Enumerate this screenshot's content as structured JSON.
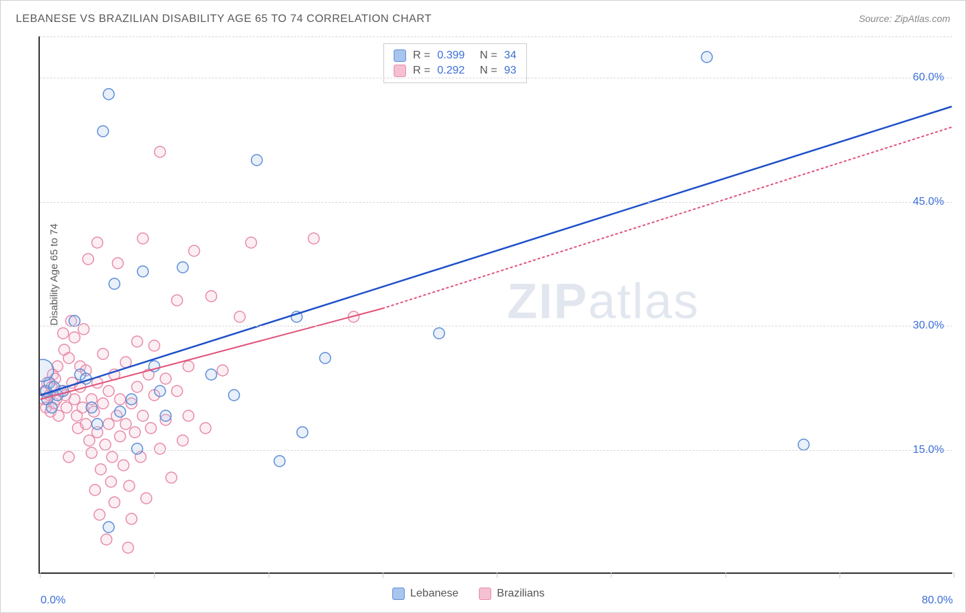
{
  "title": "LEBANESE VS BRAZILIAN DISABILITY AGE 65 TO 74 CORRELATION CHART",
  "source": "Source: ZipAtlas.com",
  "y_axis_label": "Disability Age 65 to 74",
  "watermark": {
    "bold": "ZIP",
    "rest": "atlas"
  },
  "chart": {
    "type": "scatter",
    "xlim": [
      0,
      80
    ],
    "ylim": [
      0,
      65
    ],
    "x_tick_positions_pct": [
      0,
      12.5,
      25,
      37.5,
      50,
      62.5,
      75,
      87.5,
      100
    ],
    "x_tick_labels": {
      "min": "0.0%",
      "max": "80.0%"
    },
    "y_tick_labels": [
      {
        "value": 15.0,
        "label": "15.0%"
      },
      {
        "value": 30.0,
        "label": "30.0%"
      },
      {
        "value": 45.0,
        "label": "45.0%"
      },
      {
        "value": 60.0,
        "label": "60.0%"
      }
    ],
    "y_gridlines": [
      15.0,
      30.0,
      45.0,
      60.0,
      65.0
    ],
    "background_color": "#ffffff",
    "grid_color": "#d8d8d8",
    "marker_radius": 8,
    "marker_stroke_width": 1.5,
    "marker_fill_opacity": 0.25,
    "series": [
      {
        "name": "Lebanese",
        "color_stroke": "#5b8dd6",
        "color_fill": "#a8c5ed",
        "trend_line_color": "#1e50c8",
        "trend_line_width": 2.5,
        "trend_line_dash": "none",
        "r": "0.399",
        "n": "34",
        "trend_start": {
          "x": 0,
          "y": 21.5
        },
        "trend_end": {
          "x": 80,
          "y": 56.5
        },
        "big_markers": [
          {
            "x": 0.2,
            "y": 24.5,
            "r": 16
          }
        ],
        "points": [
          {
            "x": 0.5,
            "y": 22.0
          },
          {
            "x": 0.6,
            "y": 21.0
          },
          {
            "x": 0.8,
            "y": 23.0
          },
          {
            "x": 1.0,
            "y": 20.0
          },
          {
            "x": 1.2,
            "y": 22.5
          },
          {
            "x": 1.5,
            "y": 21.5
          },
          {
            "x": 2.0,
            "y": 22.0
          },
          {
            "x": 3.0,
            "y": 30.5
          },
          {
            "x": 3.5,
            "y": 24.0
          },
          {
            "x": 4.0,
            "y": 23.5
          },
          {
            "x": 4.5,
            "y": 20.0
          },
          {
            "x": 5.0,
            "y": 18.0
          },
          {
            "x": 5.5,
            "y": 53.5
          },
          {
            "x": 6.0,
            "y": 58.0
          },
          {
            "x": 6.5,
            "y": 35.0
          },
          {
            "x": 7.0,
            "y": 19.5
          },
          {
            "x": 8.0,
            "y": 21.0
          },
          {
            "x": 8.5,
            "y": 15.0
          },
          {
            "x": 9.0,
            "y": 36.5
          },
          {
            "x": 10.0,
            "y": 25.0
          },
          {
            "x": 10.5,
            "y": 22.0
          },
          {
            "x": 11.0,
            "y": 19.0
          },
          {
            "x": 6.0,
            "y": 5.5
          },
          {
            "x": 12.5,
            "y": 37.0
          },
          {
            "x": 15.0,
            "y": 24.0
          },
          {
            "x": 17.0,
            "y": 21.5
          },
          {
            "x": 19.0,
            "y": 50.0
          },
          {
            "x": 21.0,
            "y": 13.5
          },
          {
            "x": 22.5,
            "y": 31.0
          },
          {
            "x": 23.0,
            "y": 17.0
          },
          {
            "x": 25.0,
            "y": 26.0
          },
          {
            "x": 35.0,
            "y": 29.0
          },
          {
            "x": 58.5,
            "y": 62.5
          },
          {
            "x": 67.0,
            "y": 15.5
          }
        ]
      },
      {
        "name": "Brazilians",
        "color_stroke": "#e88aa8",
        "color_fill": "#f5c0d2",
        "trend_line_color": "#e25077",
        "trend_line_width": 2,
        "trend_line_dash": "4,3",
        "r": "0.292",
        "n": "93",
        "trend_start": {
          "x": 0,
          "y": 21.0
        },
        "trend_end_solid": {
          "x": 30,
          "y": 32.0
        },
        "trend_end": {
          "x": 80,
          "y": 54.0
        },
        "points": [
          {
            "x": 0.3,
            "y": 21.0
          },
          {
            "x": 0.4,
            "y": 22.0
          },
          {
            "x": 0.5,
            "y": 20.0
          },
          {
            "x": 0.6,
            "y": 23.0
          },
          {
            "x": 0.8,
            "y": 21.5
          },
          {
            "x": 0.9,
            "y": 19.5
          },
          {
            "x": 1.0,
            "y": 22.5
          },
          {
            "x": 1.1,
            "y": 24.0
          },
          {
            "x": 1.2,
            "y": 20.5
          },
          {
            "x": 1.3,
            "y": 23.5
          },
          {
            "x": 1.4,
            "y": 21.0
          },
          {
            "x": 1.5,
            "y": 25.0
          },
          {
            "x": 1.6,
            "y": 19.0
          },
          {
            "x": 1.8,
            "y": 22.0
          },
          {
            "x": 2.0,
            "y": 29.0
          },
          {
            "x": 2.1,
            "y": 27.0
          },
          {
            "x": 2.2,
            "y": 21.5
          },
          {
            "x": 2.3,
            "y": 20.0
          },
          {
            "x": 2.5,
            "y": 26.0
          },
          {
            "x": 2.5,
            "y": 14.0
          },
          {
            "x": 2.7,
            "y": 30.5
          },
          {
            "x": 2.8,
            "y": 23.0
          },
          {
            "x": 3.0,
            "y": 21.0
          },
          {
            "x": 3.0,
            "y": 28.5
          },
          {
            "x": 3.2,
            "y": 19.0
          },
          {
            "x": 3.3,
            "y": 17.5
          },
          {
            "x": 3.5,
            "y": 25.0
          },
          {
            "x": 3.5,
            "y": 22.5
          },
          {
            "x": 3.7,
            "y": 20.0
          },
          {
            "x": 3.8,
            "y": 29.5
          },
          {
            "x": 4.0,
            "y": 18.0
          },
          {
            "x": 4.0,
            "y": 24.5
          },
          {
            "x": 4.2,
            "y": 38.0
          },
          {
            "x": 4.3,
            "y": 16.0
          },
          {
            "x": 4.5,
            "y": 21.0
          },
          {
            "x": 4.5,
            "y": 14.5
          },
          {
            "x": 4.7,
            "y": 19.5
          },
          {
            "x": 4.8,
            "y": 10.0
          },
          {
            "x": 5.0,
            "y": 23.0
          },
          {
            "x": 5.0,
            "y": 17.0
          },
          {
            "x": 5.0,
            "y": 40.0
          },
          {
            "x": 5.2,
            "y": 7.0
          },
          {
            "x": 5.3,
            "y": 12.5
          },
          {
            "x": 5.5,
            "y": 20.5
          },
          {
            "x": 5.5,
            "y": 26.5
          },
          {
            "x": 5.7,
            "y": 15.5
          },
          {
            "x": 5.8,
            "y": 4.0
          },
          {
            "x": 6.0,
            "y": 22.0
          },
          {
            "x": 6.0,
            "y": 18.0
          },
          {
            "x": 6.2,
            "y": 11.0
          },
          {
            "x": 6.3,
            "y": 14.0
          },
          {
            "x": 6.5,
            "y": 24.0
          },
          {
            "x": 6.5,
            "y": 8.5
          },
          {
            "x": 6.7,
            "y": 19.0
          },
          {
            "x": 6.8,
            "y": 37.5
          },
          {
            "x": 7.0,
            "y": 16.5
          },
          {
            "x": 7.0,
            "y": 21.0
          },
          {
            "x": 7.3,
            "y": 13.0
          },
          {
            "x": 7.5,
            "y": 18.0
          },
          {
            "x": 7.5,
            "y": 25.5
          },
          {
            "x": 7.7,
            "y": 3.0
          },
          {
            "x": 7.8,
            "y": 10.5
          },
          {
            "x": 8.0,
            "y": 20.5
          },
          {
            "x": 8.0,
            "y": 6.5
          },
          {
            "x": 8.3,
            "y": 17.0
          },
          {
            "x": 8.5,
            "y": 22.5
          },
          {
            "x": 8.5,
            "y": 28.0
          },
          {
            "x": 8.8,
            "y": 14.0
          },
          {
            "x": 9.0,
            "y": 19.0
          },
          {
            "x": 9.0,
            "y": 40.5
          },
          {
            "x": 9.3,
            "y": 9.0
          },
          {
            "x": 9.5,
            "y": 24.0
          },
          {
            "x": 9.7,
            "y": 17.5
          },
          {
            "x": 10.0,
            "y": 21.5
          },
          {
            "x": 10.0,
            "y": 27.5
          },
          {
            "x": 10.5,
            "y": 15.0
          },
          {
            "x": 10.5,
            "y": 51.0
          },
          {
            "x": 11.0,
            "y": 23.5
          },
          {
            "x": 11.0,
            "y": 18.5
          },
          {
            "x": 11.5,
            "y": 11.5
          },
          {
            "x": 12.0,
            "y": 22.0
          },
          {
            "x": 12.0,
            "y": 33.0
          },
          {
            "x": 12.5,
            "y": 16.0
          },
          {
            "x": 13.0,
            "y": 25.0
          },
          {
            "x": 13.0,
            "y": 19.0
          },
          {
            "x": 13.5,
            "y": 39.0
          },
          {
            "x": 14.5,
            "y": 17.5
          },
          {
            "x": 15.0,
            "y": 33.5
          },
          {
            "x": 16.0,
            "y": 24.5
          },
          {
            "x": 17.5,
            "y": 31.0
          },
          {
            "x": 18.5,
            "y": 40.0
          },
          {
            "x": 24.0,
            "y": 40.5
          },
          {
            "x": 27.5,
            "y": 31.0
          }
        ]
      }
    ],
    "bottom_legend": [
      {
        "label": "Lebanese",
        "fill": "#a8c5ed",
        "stroke": "#5b8dd6"
      },
      {
        "label": "Brazilians",
        "fill": "#f5c0d2",
        "stroke": "#e88aa8"
      }
    ]
  }
}
